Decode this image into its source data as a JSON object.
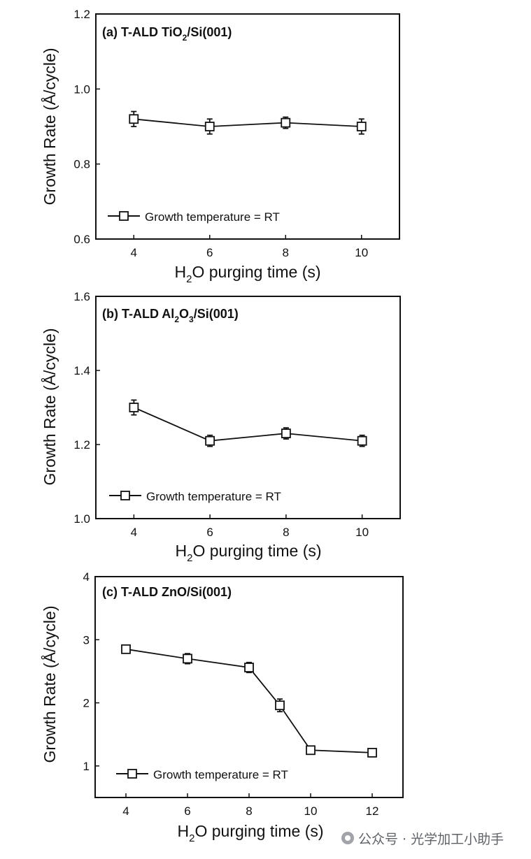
{
  "chart_data": [
    {
      "type": "line",
      "title": "(a) T-ALD TiO2/Si(001)",
      "title_main": "(a) T-ALD TiO",
      "title_sub": "2",
      "title_tail": "/Si(001)",
      "xlabel_pre": "H",
      "xlabel_sub": "2",
      "xlabel_post": "O purging time (s)",
      "ylabel": "Growth Rate (Å/cycle)",
      "xlim": [
        3,
        11
      ],
      "ylim": [
        0.6,
        1.2
      ],
      "xticks": [
        4,
        6,
        8,
        10
      ],
      "yticks": [
        0.6,
        0.8,
        1.0,
        1.2
      ],
      "ytick_labels": [
        "0.6",
        "0.8",
        "1.0",
        "1.2"
      ],
      "x": [
        4,
        6,
        8,
        10
      ],
      "y": [
        0.92,
        0.9,
        0.91,
        0.9
      ],
      "yerr": [
        0.02,
        0.02,
        0.015,
        0.02
      ],
      "legend": "Growth temperature = RT"
    },
    {
      "type": "line",
      "title": "(b) T-ALD Al2O3/Si(001)",
      "title_main": "(b) T-ALD Al",
      "title_sub": "2",
      "title_tail": "O",
      "title_sub2": "3",
      "title_tail2": "/Si(001)",
      "xlabel_pre": "H",
      "xlabel_sub": "2",
      "xlabel_post": "O purging time (s)",
      "ylabel": "Growth Rate (Å/cycle)",
      "xlim": [
        3,
        11
      ],
      "ylim": [
        1.0,
        1.6
      ],
      "xticks": [
        4,
        6,
        8,
        10
      ],
      "yticks": [
        1.0,
        1.2,
        1.4,
        1.6
      ],
      "ytick_labels": [
        "1.0",
        "1.2",
        "1.4",
        "1.6"
      ],
      "x": [
        4,
        6,
        8,
        10
      ],
      "y": [
        1.3,
        1.21,
        1.23,
        1.21
      ],
      "yerr": [
        0.02,
        0.015,
        0.015,
        0.015
      ],
      "legend": "Growth temperature = RT"
    },
    {
      "type": "line",
      "title": "(c) T-ALD ZnO/Si(001)",
      "title_main": "(c) T-ALD ZnO/Si(001)",
      "xlabel_pre": "H",
      "xlabel_sub": "2",
      "xlabel_post": "O purging time (s)",
      "ylabel": "Growth Rate (Å/cycle)",
      "xlim": [
        3,
        13
      ],
      "ylim": [
        0.5,
        4
      ],
      "xticks": [
        4,
        6,
        8,
        10,
        12
      ],
      "yticks": [
        1,
        2,
        3,
        4
      ],
      "ytick_labels": [
        "1",
        "2",
        "3",
        "4"
      ],
      "x": [
        4,
        6,
        8,
        9,
        10,
        12
      ],
      "y": [
        2.85,
        2.7,
        2.56,
        1.96,
        1.25,
        1.21
      ],
      "yerr": [
        0.06,
        0.08,
        0.08,
        0.1,
        0.04,
        0.06
      ],
      "legend": "Growth temperature = RT"
    }
  ],
  "watermark": "公众号 · 光学加工小助手",
  "watermark_icon": "wechat-icon"
}
